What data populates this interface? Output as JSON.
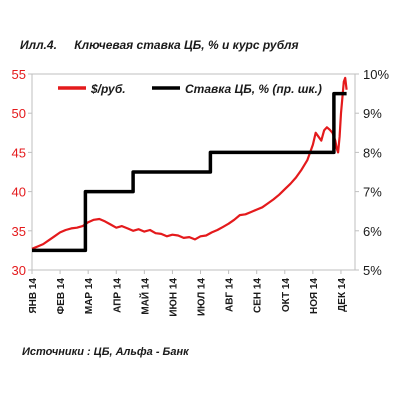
{
  "figure": {
    "label": "Илл.4.",
    "title": "Ключевая ставка ЦБ, % и курс рубля",
    "source": "Источники : ЦБ, Альфа - Банк"
  },
  "chart_data": {
    "type": "line",
    "title": "Ключевая ставка ЦБ, % и курс рубля",
    "categories": [
      "янв 14",
      "фев 14",
      "мар 14",
      "апр 14",
      "май 14",
      "июн 14",
      "июл 14",
      "авг 14",
      "сен 14",
      "окт 14",
      "ноя 14",
      "дек 14"
    ],
    "x_range": [
      0,
      11.5
    ],
    "y_left": {
      "range": [
        30,
        55
      ],
      "ticks": [
        "30",
        "35",
        "40",
        "45",
        "50",
        "55"
      ],
      "tick_values": [
        30,
        35,
        40,
        45,
        50,
        55
      ],
      "color": "#e41a1c"
    },
    "y_right": {
      "range": [
        5,
        10
      ],
      "ticks": [
        "5%",
        "6%",
        "7%",
        "8%",
        "9%",
        "10%"
      ],
      "tick_values": [
        5,
        6,
        7,
        8,
        9,
        10
      ]
    },
    "legend_position": "top",
    "series": [
      {
        "name": "$/руб.",
        "axis": "left",
        "color": "#e41a1c",
        "x": [
          0,
          0.2,
          0.4,
          0.6,
          0.8,
          1.0,
          1.2,
          1.4,
          1.6,
          1.8,
          2.0,
          2.2,
          2.4,
          2.6,
          2.8,
          3.0,
          3.2,
          3.4,
          3.6,
          3.8,
          4.0,
          4.2,
          4.4,
          4.6,
          4.8,
          5.0,
          5.2,
          5.4,
          5.6,
          5.8,
          6.0,
          6.2,
          6.4,
          6.6,
          6.8,
          7.0,
          7.2,
          7.4,
          7.6,
          7.8,
          8.0,
          8.2,
          8.4,
          8.6,
          8.8,
          9.0,
          9.2,
          9.4,
          9.6,
          9.8,
          10.0,
          10.1,
          10.2,
          10.3,
          10.4,
          10.5,
          10.6,
          10.7,
          10.8,
          10.85,
          10.9,
          10.95,
          11.0,
          11.05,
          11.1,
          11.15,
          11.2
        ],
        "values": [
          32.7,
          33.0,
          33.3,
          33.8,
          34.3,
          34.8,
          35.1,
          35.3,
          35.4,
          35.6,
          36.1,
          36.4,
          36.5,
          36.2,
          35.8,
          35.4,
          35.6,
          35.3,
          35.0,
          35.2,
          34.9,
          35.1,
          34.7,
          34.6,
          34.3,
          34.5,
          34.4,
          34.1,
          34.2,
          33.9,
          34.3,
          34.4,
          34.8,
          35.1,
          35.5,
          35.9,
          36.4,
          37.0,
          37.1,
          37.4,
          37.7,
          38.0,
          38.5,
          39.0,
          39.6,
          40.3,
          41.0,
          41.8,
          42.8,
          44.0,
          46.0,
          47.5,
          47.0,
          46.5,
          47.8,
          48.2,
          47.9,
          47.5,
          46.5,
          45.5,
          45.0,
          47.0,
          50.0,
          52.0,
          54.0,
          54.5,
          53.0
        ]
      },
      {
        "name": "Ставка ЦБ, % (пр. шк.)",
        "axis": "right",
        "color": "#000000",
        "x": [
          0,
          1.9,
          1.9,
          3.6,
          3.6,
          6.35,
          6.35,
          9.95,
          9.95,
          10.75,
          10.75,
          11.2
        ],
        "values": [
          5.5,
          5.5,
          7.0,
          7.0,
          7.5,
          7.5,
          8.0,
          8.0,
          8.0,
          8.0,
          9.5,
          9.5
        ]
      }
    ]
  }
}
